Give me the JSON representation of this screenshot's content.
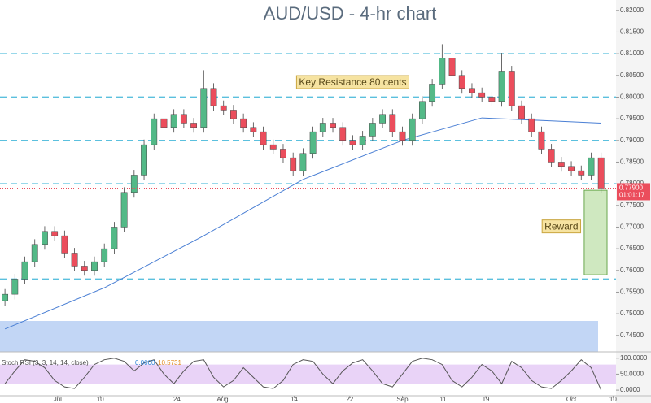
{
  "chart_data": {
    "type": "candlestick",
    "title": "AUD/USD - 4-hr chart",
    "up_color": "#53b987",
    "down_color": "#eb4d5c",
    "xlim": [
      -0.5,
      61.5
    ],
    "xticks": [
      {
        "value": 5.3,
        "label": "Jul"
      },
      {
        "value": 9.6,
        "label": "10"
      },
      {
        "value": 17.3,
        "label": "24"
      },
      {
        "value": 21.9,
        "label": "Aug"
      },
      {
        "value": 29.1,
        "label": "14"
      },
      {
        "value": 34.7,
        "label": "22"
      },
      {
        "value": 40,
        "label": "Sep"
      },
      {
        "value": 44.1,
        "label": "11"
      },
      {
        "value": 48.4,
        "label": "19"
      },
      {
        "value": 57,
        "label": "Oct"
      },
      {
        "value": 61.2,
        "label": "10"
      }
    ],
    "ylim": [
      0.7414,
      0.8224
    ],
    "yticks": [
      {
        "value": 0.745,
        "label": "0.74500"
      },
      {
        "value": 0.75,
        "label": "0.75000"
      },
      {
        "value": 0.755,
        "label": "0.75500"
      },
      {
        "value": 0.76,
        "label": "0.76000"
      },
      {
        "value": 0.765,
        "label": "0.76500"
      },
      {
        "value": 0.77,
        "label": "0.77000"
      },
      {
        "value": 0.775,
        "label": "0.77500"
      },
      {
        "value": 0.78,
        "label": "0.78000"
      },
      {
        "value": 0.785,
        "label": "0.78500"
      },
      {
        "value": 0.79,
        "label": "0.79000"
      },
      {
        "value": 0.795,
        "label": "0.79500"
      },
      {
        "value": 0.8,
        "label": "0.80000"
      },
      {
        "value": 0.805,
        "label": "0.80500"
      },
      {
        "value": 0.81,
        "label": "0.81000"
      },
      {
        "value": 0.815,
        "label": "0.81500"
      },
      {
        "value": 0.82,
        "label": "0.82000"
      }
    ],
    "open": [
      0.753,
      0.7545,
      0.758,
      0.762,
      0.766,
      0.769,
      0.768,
      0.764,
      0.761,
      0.76,
      0.762,
      0.765,
      0.77,
      0.778,
      0.782,
      0.789,
      0.795,
      0.793,
      0.796,
      0.794,
      0.793,
      0.802,
      0.798,
      0.797,
      0.795,
      0.793,
      0.792,
      0.789,
      0.788,
      0.786,
      0.783,
      0.787,
      0.792,
      0.794,
      0.793,
      0.79,
      0.789,
      0.791,
      0.794,
      0.796,
      0.792,
      0.79,
      0.795,
      0.799,
      0.803,
      0.809,
      0.805,
      0.802,
      0.801,
      0.8,
      0.799,
      0.806,
      0.798,
      0.795,
      0.792,
      0.788,
      0.785,
      0.784,
      0.783,
      0.782,
      0.786
    ],
    "high": [
      0.7557,
      0.7592,
      0.7632,
      0.7672,
      0.7702,
      0.7702,
      0.7692,
      0.7652,
      0.7622,
      0.7632,
      0.7662,
      0.7712,
      0.7792,
      0.7832,
      0.7902,
      0.7962,
      0.7962,
      0.7972,
      0.7972,
      0.7952,
      0.8062,
      0.8032,
      0.7992,
      0.7982,
      0.7962,
      0.7942,
      0.7932,
      0.7902,
      0.7892,
      0.7872,
      0.7882,
      0.7932,
      0.7952,
      0.7952,
      0.7942,
      0.7912,
      0.7922,
      0.7952,
      0.7972,
      0.7972,
      0.7932,
      0.7962,
      0.8002,
      0.8042,
      0.8122,
      0.8102,
      0.8062,
      0.8032,
      0.8022,
      0.8012,
      0.8102,
      0.8072,
      0.7992,
      0.7962,
      0.7932,
      0.7892,
      0.7862,
      0.7852,
      0.7842,
      0.7872,
      0.7872
    ],
    "low": [
      0.7518,
      0.7533,
      0.7568,
      0.7608,
      0.7648,
      0.7668,
      0.7628,
      0.7598,
      0.7588,
      0.7588,
      0.7608,
      0.7638,
      0.7688,
      0.7768,
      0.7808,
      0.7878,
      0.7918,
      0.7918,
      0.7928,
      0.7918,
      0.7918,
      0.7968,
      0.7958,
      0.7938,
      0.7918,
      0.7908,
      0.7878,
      0.7868,
      0.7848,
      0.7818,
      0.7818,
      0.7858,
      0.7908,
      0.7918,
      0.7888,
      0.7878,
      0.7878,
      0.7898,
      0.7928,
      0.7908,
      0.7888,
      0.7888,
      0.7938,
      0.7978,
      0.8018,
      0.8038,
      0.8008,
      0.7998,
      0.7988,
      0.7978,
      0.7978,
      0.7968,
      0.7938,
      0.7908,
      0.7868,
      0.7838,
      0.7828,
      0.7818,
      0.7808,
      0.7808,
      0.7778
    ],
    "close": [
      0.7545,
      0.758,
      0.762,
      0.766,
      0.769,
      0.768,
      0.764,
      0.761,
      0.76,
      0.762,
      0.765,
      0.77,
      0.778,
      0.782,
      0.789,
      0.795,
      0.793,
      0.796,
      0.794,
      0.793,
      0.802,
      0.798,
      0.797,
      0.795,
      0.793,
      0.792,
      0.789,
      0.788,
      0.786,
      0.783,
      0.787,
      0.792,
      0.794,
      0.793,
      0.79,
      0.789,
      0.791,
      0.794,
      0.796,
      0.792,
      0.79,
      0.795,
      0.799,
      0.803,
      0.809,
      0.805,
      0.802,
      0.801,
      0.8,
      0.799,
      0.806,
      0.798,
      0.795,
      0.792,
      0.788,
      0.785,
      0.784,
      0.783,
      0.782,
      0.786,
      0.779
    ],
    "ma": {
      "color": "#4a7fd4",
      "x": [
        0,
        10,
        20,
        30,
        40,
        48,
        55,
        60
      ],
      "values": [
        0.7465,
        0.756,
        0.768,
        0.781,
        0.79,
        0.7952,
        0.7945,
        0.794
      ]
    },
    "levels": {
      "color": "#5bc0de",
      "values": [
        0.758,
        0.78,
        0.79,
        0.8,
        0.81
      ]
    },
    "annotations": [
      {
        "text": "Key Resistance 80 cents",
        "x": 35,
        "y": 0.8033
      },
      {
        "text": "Reward",
        "x": 56,
        "y": 0.77
      }
    ],
    "reward_zone": {
      "color": "#cfe8c0",
      "from": 0.7785,
      "to": 0.759
    },
    "last_price_label": "0.77900",
    "countdown": "01:01:17",
    "stoch": {
      "name": "Stoch RSI (3, 3, 14, 14, close)",
      "color": "#555555",
      "band_color": "#e3c8f5",
      "ylim": [
        -15,
        112
      ],
      "yticks": [
        {
          "value": 100,
          "label": "100.0000"
        },
        {
          "value": 50,
          "label": "50.0000"
        },
        {
          "value": 0,
          "label": "0.0000"
        }
      ],
      "band": [
        20,
        80
      ],
      "k": [
        20,
        60,
        95,
        90,
        70,
        30,
        10,
        5,
        40,
        80,
        95,
        100,
        90,
        60,
        85,
        95,
        50,
        20,
        60,
        90,
        95,
        40,
        10,
        30,
        70,
        40,
        10,
        5,
        30,
        80,
        95,
        90,
        50,
        20,
        60,
        85,
        95,
        60,
        20,
        10,
        50,
        90,
        100,
        95,
        80,
        30,
        10,
        40,
        80,
        60,
        20,
        90,
        70,
        30,
        10,
        5,
        30,
        60,
        95,
        70,
        0
      ],
      "k_label": "0.0000",
      "d_label": "10.5731"
    }
  }
}
